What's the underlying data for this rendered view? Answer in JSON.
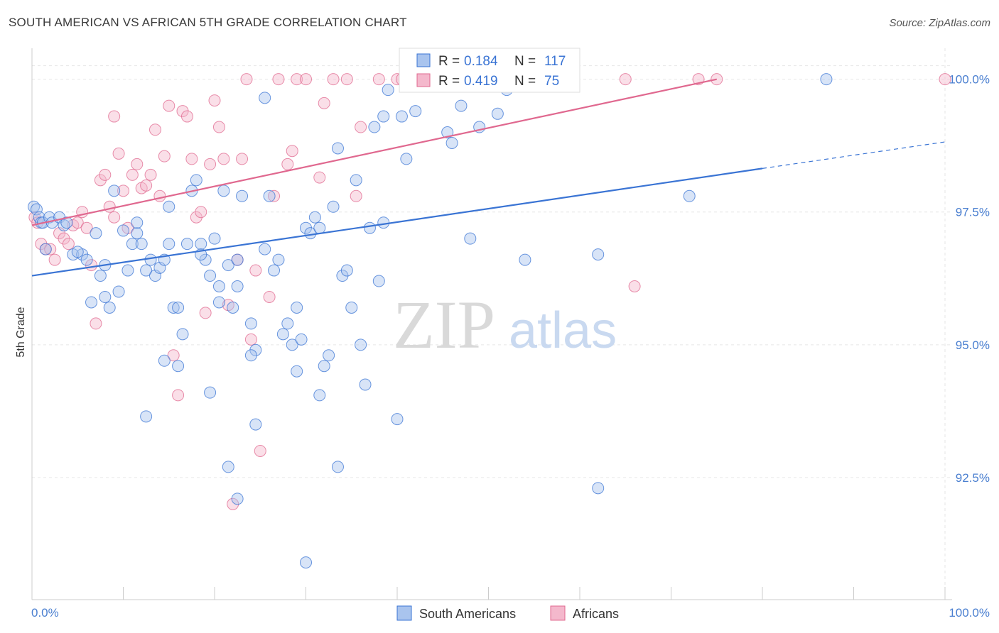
{
  "header": {
    "title": "SOUTH AMERICAN VS AFRICAN 5TH GRADE CORRELATION CHART",
    "source": "Source: ZipAtlas.com"
  },
  "watermark": {
    "zip": "ZIP",
    "atlas": "atlas"
  },
  "colors": {
    "blue": "#3a74d4",
    "blue_fill": "#a9c4ee",
    "pink": "#e0688f",
    "pink_fill": "#f4b8cc",
    "grid": "#e6e6e6",
    "tick_text": "#4a7fd0"
  },
  "legend": {
    "rows": [
      {
        "r_label": "R =",
        "r_value": "0.184",
        "n_label": "N =",
        "n_value": "117"
      },
      {
        "r_label": "R =",
        "r_value": "0.419",
        "n_label": "N =",
        "n_value": "75"
      }
    ]
  },
  "bottom_legend": [
    "South Americans",
    "Africans"
  ],
  "chart_data": {
    "type": "scatter",
    "title": "SOUTH AMERICAN VS AFRICAN 5TH GRADE CORRELATION CHART",
    "xlabel": "",
    "ylabel": "5th Grade",
    "xlim": [
      0,
      100
    ],
    "ylim": [
      90.2,
      100.45
    ],
    "x_tick_labels": [
      "0.0%",
      "100.0%"
    ],
    "y_ticks": [
      92.5,
      95.0,
      97.5,
      100.0
    ],
    "y_tick_labels": [
      "92.5%",
      "95.0%",
      "97.5%",
      "100.0%"
    ],
    "grid": true,
    "legend_position": "top-center",
    "series": [
      {
        "name": "South Americans",
        "color": "#3a74d4",
        "R": 0.184,
        "N": 117,
        "trend": {
          "x0": 0,
          "y0": 96.3,
          "x1": 80,
          "y1": 98.32,
          "dashed_to_x": 100,
          "dashed_to_y": 98.82
        },
        "points": [
          [
            0.2,
            97.6
          ],
          [
            0.5,
            97.55
          ],
          [
            0.8,
            97.4
          ],
          [
            1.0,
            97.3
          ],
          [
            1.2,
            97.3
          ],
          [
            1.5,
            96.8
          ],
          [
            1.9,
            97.4
          ],
          [
            2.2,
            97.3
          ],
          [
            3.0,
            97.4
          ],
          [
            3.5,
            97.25
          ],
          [
            3.8,
            97.3
          ],
          [
            4.5,
            96.7
          ],
          [
            5.5,
            96.7
          ],
          [
            6.0,
            96.6
          ],
          [
            5.0,
            96.75
          ],
          [
            6.5,
            95.8
          ],
          [
            7.0,
            97.1
          ],
          [
            7.5,
            96.3
          ],
          [
            8.0,
            95.9
          ],
          [
            8.5,
            95.7
          ],
          [
            8.0,
            96.5
          ],
          [
            9.0,
            97.9
          ],
          [
            9.5,
            96.0
          ],
          [
            10.0,
            97.15
          ],
          [
            10.5,
            96.4
          ],
          [
            11.0,
            96.9
          ],
          [
            11.5,
            97.1
          ],
          [
            11.5,
            97.3
          ],
          [
            12.0,
            96.9
          ],
          [
            12.5,
            96.4
          ],
          [
            13.0,
            96.6
          ],
          [
            13.5,
            96.3
          ],
          [
            14.0,
            96.45
          ],
          [
            14.5,
            96.6
          ],
          [
            15.0,
            97.6
          ],
          [
            15.5,
            95.7
          ],
          [
            16.0,
            95.7
          ],
          [
            15.0,
            96.9
          ],
          [
            16.5,
            95.2
          ],
          [
            17.0,
            96.9
          ],
          [
            17.5,
            97.9
          ],
          [
            18.0,
            98.1
          ],
          [
            18.5,
            96.9
          ],
          [
            19.0,
            96.6
          ],
          [
            19.5,
            96.3
          ],
          [
            20.0,
            97.0
          ],
          [
            20.5,
            96.1
          ],
          [
            21.0,
            97.9
          ],
          [
            21.5,
            96.5
          ],
          [
            22.0,
            95.7
          ],
          [
            22.5,
            96.6
          ],
          [
            23.0,
            97.8
          ],
          [
            24.0,
            95.4
          ],
          [
            24.5,
            94.9
          ],
          [
            25.5,
            96.8
          ],
          [
            26.0,
            97.8
          ],
          [
            26.5,
            96.4
          ],
          [
            27.0,
            96.6
          ],
          [
            27.5,
            95.2
          ],
          [
            28.0,
            95.4
          ],
          [
            28.5,
            95.0
          ],
          [
            29.0,
            95.7
          ],
          [
            29.5,
            95.1
          ],
          [
            30.0,
            97.2
          ],
          [
            30.5,
            97.1
          ],
          [
            31.0,
            97.4
          ],
          [
            31.5,
            97.2
          ],
          [
            32.0,
            94.6
          ],
          [
            32.5,
            94.8
          ],
          [
            33.0,
            97.6
          ],
          [
            33.5,
            98.7
          ],
          [
            34.0,
            96.3
          ],
          [
            34.5,
            96.4
          ],
          [
            35.0,
            95.7
          ],
          [
            35.5,
            98.1
          ],
          [
            36.0,
            95.0
          ],
          [
            36.5,
            94.25
          ],
          [
            37.0,
            97.2
          ],
          [
            37.5,
            99.1
          ],
          [
            38.0,
            96.2
          ],
          [
            38.5,
            97.3
          ],
          [
            38.5,
            99.3
          ],
          [
            39.0,
            99.8
          ],
          [
            40.0,
            93.6
          ],
          [
            40.5,
            99.3
          ],
          [
            41.0,
            98.5
          ],
          [
            42.0,
            99.4
          ],
          [
            43.0,
            99.9
          ],
          [
            44.0,
            100.0
          ],
          [
            45.5,
            99.0
          ],
          [
            46.0,
            98.8
          ],
          [
            47.0,
            99.5
          ],
          [
            48.0,
            97.0
          ],
          [
            49.0,
            99.1
          ],
          [
            50.0,
            100.0
          ],
          [
            51.0,
            99.35
          ],
          [
            52.0,
            99.8
          ],
          [
            54.0,
            96.6
          ],
          [
            62.0,
            96.7
          ],
          [
            62.0,
            92.3
          ],
          [
            72.0,
            97.8
          ],
          [
            87.0,
            100.0
          ],
          [
            16.0,
            94.6
          ],
          [
            19.5,
            94.1
          ],
          [
            12.5,
            93.65
          ],
          [
            24.0,
            94.8
          ],
          [
            21.5,
            92.7
          ],
          [
            22.5,
            92.1
          ],
          [
            24.5,
            93.5
          ],
          [
            33.5,
            92.7
          ],
          [
            31.5,
            94.05
          ],
          [
            30.0,
            90.9
          ],
          [
            29.0,
            94.5
          ],
          [
            25.5,
            99.65
          ],
          [
            18.5,
            96.7
          ],
          [
            20.5,
            95.8
          ],
          [
            22.5,
            96.1
          ],
          [
            14.5,
            94.7
          ]
        ]
      },
      {
        "name": "Africans",
        "color": "#e0688f",
        "R": 0.419,
        "N": 75,
        "trend": {
          "x0": 0,
          "y0": 97.25,
          "x1": 75,
          "y1": 100.0
        },
        "points": [
          [
            0.3,
            97.4
          ],
          [
            0.6,
            97.3
          ],
          [
            1.0,
            96.9
          ],
          [
            1.5,
            96.8
          ],
          [
            2.0,
            96.8
          ],
          [
            2.5,
            96.6
          ],
          [
            3.0,
            97.1
          ],
          [
            3.5,
            97.0
          ],
          [
            4.0,
            96.9
          ],
          [
            4.5,
            97.25
          ],
          [
            5.0,
            97.3
          ],
          [
            5.5,
            97.5
          ],
          [
            6.0,
            97.2
          ],
          [
            6.5,
            96.5
          ],
          [
            7.0,
            95.4
          ],
          [
            7.5,
            98.1
          ],
          [
            8.0,
            98.2
          ],
          [
            8.5,
            97.6
          ],
          [
            9.0,
            97.4
          ],
          [
            9.5,
            98.6
          ],
          [
            10.0,
            97.9
          ],
          [
            10.5,
            97.2
          ],
          [
            11.0,
            98.2
          ],
          [
            11.5,
            98.4
          ],
          [
            12.0,
            97.95
          ],
          [
            12.5,
            98.0
          ],
          [
            13.0,
            98.2
          ],
          [
            13.5,
            99.05
          ],
          [
            14.0,
            97.8
          ],
          [
            14.5,
            98.55
          ],
          [
            15.0,
            99.5
          ],
          [
            15.5,
            94.8
          ],
          [
            16.0,
            94.05
          ],
          [
            16.5,
            99.4
          ],
          [
            17.0,
            99.3
          ],
          [
            17.5,
            98.5
          ],
          [
            18.0,
            97.4
          ],
          [
            18.5,
            97.5
          ],
          [
            19.0,
            95.6
          ],
          [
            19.5,
            98.4
          ],
          [
            20.0,
            99.6
          ],
          [
            20.5,
            99.1
          ],
          [
            21.0,
            98.5
          ],
          [
            21.5,
            95.75
          ],
          [
            22.0,
            92.0
          ],
          [
            22.5,
            96.6
          ],
          [
            23.0,
            98.5
          ],
          [
            23.5,
            100.0
          ],
          [
            24.0,
            95.1
          ],
          [
            24.5,
            96.4
          ],
          [
            25.0,
            93.0
          ],
          [
            26.0,
            95.9
          ],
          [
            26.5,
            97.8
          ],
          [
            27.0,
            100.0
          ],
          [
            28.0,
            98.4
          ],
          [
            28.5,
            98.65
          ],
          [
            29.0,
            100.0
          ],
          [
            30.0,
            100.0
          ],
          [
            31.5,
            98.15
          ],
          [
            32.0,
            99.55
          ],
          [
            33.0,
            100.0
          ],
          [
            34.5,
            100.0
          ],
          [
            35.5,
            97.8
          ],
          [
            36.0,
            99.1
          ],
          [
            38.0,
            100.0
          ],
          [
            40.0,
            100.0
          ],
          [
            40.5,
            100.0
          ],
          [
            46.0,
            100.0
          ],
          [
            54.0,
            100.0
          ],
          [
            65.0,
            100.0
          ],
          [
            66.0,
            96.1
          ],
          [
            73.0,
            100.0
          ],
          [
            75.0,
            100.0
          ],
          [
            100.0,
            100.0
          ],
          [
            9.0,
            99.3
          ]
        ]
      }
    ]
  }
}
